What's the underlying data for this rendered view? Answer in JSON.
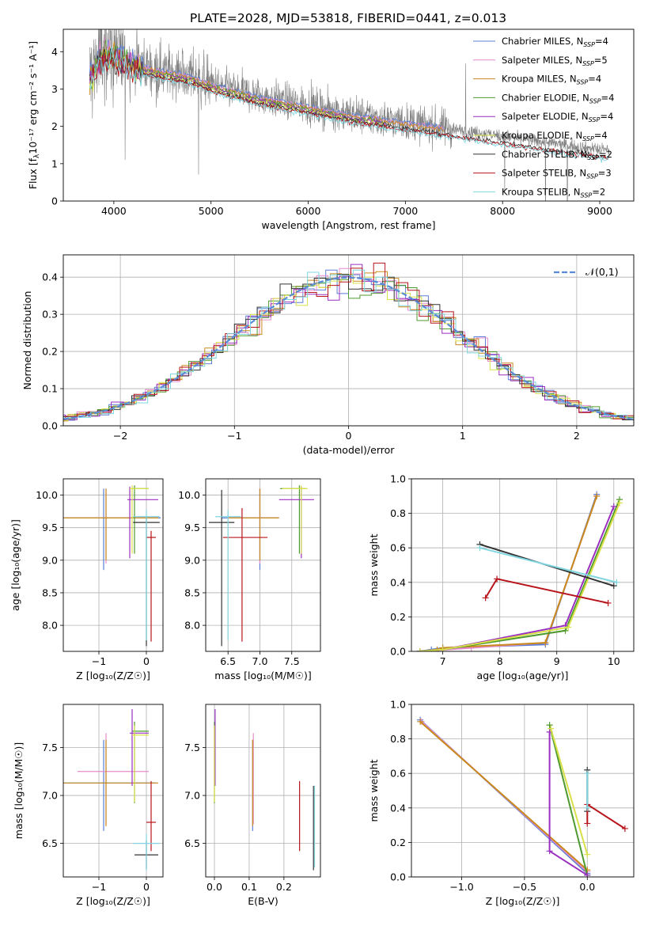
{
  "figure": {
    "title": "PLATE=2028, MJD=53818, FIBERID=0441, z=0.013"
  },
  "models": [
    {
      "name": "Chabrier MILES",
      "nssp": "4",
      "color": "#5b7fd6"
    },
    {
      "name": "Salpeter MILES",
      "nssp": "5",
      "color": "#e68ccd"
    },
    {
      "name": "Kroupa MILES",
      "nssp": "4",
      "color": "#c98a1c"
    },
    {
      "name": "Chabrier ELODIE",
      "nssp": "4",
      "color": "#4f9a2e"
    },
    {
      "name": "Salpeter ELODIE",
      "nssp": "4",
      "color": "#9b30c0"
    },
    {
      "name": "Kroupa ELODIE",
      "nssp": "4",
      "color": "#d8e04a"
    },
    {
      "name": "Chabrier STELIB",
      "nssp": "2",
      "color": "#333333"
    },
    {
      "name": "Salpeter STELIB",
      "nssp": "3",
      "color": "#b8141b"
    },
    {
      "name": "Kroupa STELIB",
      "nssp": "2",
      "color": "#7fd6e0"
    }
  ],
  "chart_data": [
    {
      "id": "spectrum",
      "type": "line",
      "xlabel": "wavelength [Angstrom, rest frame]",
      "ylabel_main": "Flux [f",
      "ylabel_sub": "λ",
      "ylabel_rest": "10⁻¹⁷ erg cm⁻² s⁻¹ A⁻¹]",
      "xlim": [
        3480,
        9350
      ],
      "ylim": [
        0,
        4.6
      ],
      "xticks": [
        4000,
        5000,
        6000,
        7000,
        8000,
        9000
      ],
      "yticks": [
        0,
        1,
        2,
        3,
        4
      ],
      "data_color": "#808080",
      "continuum": [
        [
          3750,
          3.3
        ],
        [
          3850,
          3.9
        ],
        [
          3950,
          4.05
        ],
        [
          4050,
          3.95
        ],
        [
          4200,
          3.7
        ],
        [
          4400,
          3.55
        ],
        [
          4600,
          3.45
        ],
        [
          4800,
          3.35
        ],
        [
          5000,
          3.15
        ],
        [
          5200,
          3.0
        ],
        [
          5500,
          2.8
        ],
        [
          5800,
          2.65
        ],
        [
          6100,
          2.5
        ],
        [
          6500,
          2.3
        ],
        [
          6900,
          2.15
        ],
        [
          7300,
          2.0
        ],
        [
          7700,
          1.85
        ],
        [
          8100,
          1.7
        ],
        [
          8500,
          1.55
        ],
        [
          8800,
          1.45
        ],
        [
          9100,
          1.35
        ]
      ],
      "model_ranges": [
        [
          3750,
          7400
        ],
        [
          3750,
          7400
        ],
        [
          3750,
          7400
        ],
        [
          3750,
          6800
        ],
        [
          3750,
          6800
        ],
        [
          3750,
          6800
        ],
        [
          3750,
          9100
        ],
        [
          3750,
          9100
        ],
        [
          3750,
          9100
        ]
      ],
      "legend_position": "upper right"
    },
    {
      "id": "residual-histogram",
      "type": "line",
      "xlabel": "(data-model)/error",
      "ylabel": "Normed distribution",
      "xlim": [
        -2.5,
        2.5
      ],
      "ylim": [
        0,
        0.46
      ],
      "xticks": [
        -2,
        -1,
        0,
        1,
        2
      ],
      "yticks": [
        0.0,
        0.1,
        0.2,
        0.3,
        0.4
      ],
      "grid": true,
      "bin_width": 0.1,
      "reference_label": "𝒩(0,1)",
      "reference_color": "#5b8bd6",
      "legend_position": "upper right"
    },
    {
      "id": "age-vs-Z",
      "type": "scatter",
      "xlabel": "Z [log₁₀(Z/Z☉)]",
      "ylabel": "age  [log₁₀(age/yr)]",
      "xlim": [
        -1.75,
        0.35
      ],
      "ylim": [
        7.6,
        10.25
      ],
      "xticks": [
        -1,
        0
      ],
      "yticks": [
        8.0,
        8.5,
        9.0,
        9.5,
        10.0
      ],
      "grid": true,
      "errorbars": [
        {
          "model": 0,
          "x": -0.9,
          "y": 9.65,
          "xerr": [
            0.9,
            1.2
          ],
          "yerr": [
            0.8,
            0.45
          ]
        },
        {
          "model": 1,
          "x": -0.85,
          "y": 9.65,
          "xerr": [
            0.9,
            1.1
          ],
          "yerr": [
            0.7,
            0.45
          ]
        },
        {
          "model": 2,
          "x": -0.85,
          "y": 9.65,
          "xerr": [
            0.9,
            1.1
          ],
          "yerr": [
            0.65,
            0.45
          ]
        },
        {
          "model": 3,
          "x": -0.25,
          "y": 10.1,
          "xerr": [
            0.05,
            0.3
          ],
          "yerr": [
            1.0,
            0.05
          ]
        },
        {
          "model": 4,
          "x": -0.35,
          "y": 9.93,
          "xerr": [
            0.05,
            0.6
          ],
          "yerr": [
            0.9,
            0.2
          ]
        },
        {
          "model": 5,
          "x": -0.3,
          "y": 10.1,
          "xerr": [
            0.05,
            0.35
          ],
          "yerr": [
            1.0,
            0.05
          ]
        },
        {
          "model": 6,
          "x": 0.0,
          "y": 9.58,
          "xerr": [
            0.28,
            0.28
          ],
          "yerr": [
            1.9,
            0.1
          ]
        },
        {
          "model": 7,
          "x": 0.1,
          "y": 9.35,
          "xerr": [
            0.1,
            0.1
          ],
          "yerr": [
            1.6,
            0.1
          ]
        },
        {
          "model": 8,
          "x": 0.0,
          "y": 9.67,
          "xerr": [
            0.28,
            0.28
          ],
          "yerr": [
            1.9,
            0.1
          ]
        }
      ]
    },
    {
      "id": "age-vs-mass",
      "type": "scatter",
      "xlabel": "mass [log₁₀(M/M☉)]",
      "ylabel": "",
      "xlim": [
        6.15,
        7.95
      ],
      "ylim": [
        7.6,
        10.25
      ],
      "xticks": [
        6.5,
        7.0,
        7.5
      ],
      "yticks": [
        8.0,
        8.5,
        9.0,
        9.5,
        10.0
      ],
      "grid": true,
      "errorbars": [
        {
          "model": 0,
          "x": 7.0,
          "y": 9.65,
          "xerr": [
            0.6,
            0.3
          ],
          "yerr": [
            0.8,
            0.45
          ]
        },
        {
          "model": 1,
          "x": 7.0,
          "y": 9.65,
          "xerr": [
            0.5,
            0.3
          ],
          "yerr": [
            0.7,
            0.45
          ]
        },
        {
          "model": 2,
          "x": 7.0,
          "y": 9.65,
          "xerr": [
            0.5,
            0.3
          ],
          "yerr": [
            0.65,
            0.45
          ]
        },
        {
          "model": 3,
          "x": 7.62,
          "y": 10.1,
          "xerr": [
            0.3,
            0.1
          ],
          "yerr": [
            1.0,
            0.05
          ]
        },
        {
          "model": 4,
          "x": 7.65,
          "y": 9.93,
          "xerr": [
            0.35,
            0.2
          ],
          "yerr": [
            0.9,
            0.2
          ]
        },
        {
          "model": 5,
          "x": 7.65,
          "y": 10.1,
          "xerr": [
            0.3,
            0.1
          ],
          "yerr": [
            1.0,
            0.05
          ]
        },
        {
          "model": 6,
          "x": 6.4,
          "y": 9.58,
          "xerr": [
            0.2,
            0.2
          ],
          "yerr": [
            1.9,
            0.5
          ]
        },
        {
          "model": 7,
          "x": 6.72,
          "y": 9.35,
          "xerr": [
            0.3,
            0.4
          ],
          "yerr": [
            1.6,
            0.45
          ]
        },
        {
          "model": 8,
          "x": 6.5,
          "y": 9.67,
          "xerr": [
            0.2,
            0.2
          ],
          "yerr": [
            1.9,
            0.1
          ]
        }
      ]
    },
    {
      "id": "mass-weight-vs-age",
      "type": "line",
      "xlabel": "age  [log₁₀(age/yr)]",
      "ylabel": "mass weight",
      "xlim": [
        6.45,
        10.35
      ],
      "ylim": [
        0,
        1.0
      ],
      "xticks": [
        7,
        8,
        9,
        10
      ],
      "yticks": [
        0.0,
        0.2,
        0.4,
        0.6,
        0.8,
        1.0
      ],
      "grid": true,
      "series": [
        {
          "model": 0,
          "points": [
            [
              6.6,
              0.0
            ],
            [
              6.8,
              0.01
            ],
            [
              7.0,
              0.02
            ],
            [
              8.8,
              0.04
            ],
            [
              9.7,
              0.91
            ]
          ]
        },
        {
          "model": 1,
          "points": [
            [
              6.6,
              0.0
            ],
            [
              7.5,
              0.02
            ],
            [
              8.8,
              0.05
            ],
            [
              9.7,
              0.9
            ]
          ]
        },
        {
          "model": 2,
          "points": [
            [
              6.6,
              0.0
            ],
            [
              6.9,
              0.01
            ],
            [
              7.0,
              0.02
            ],
            [
              8.8,
              0.05
            ],
            [
              9.7,
              0.9
            ]
          ]
        },
        {
          "model": 3,
          "points": [
            [
              6.6,
              0.0
            ],
            [
              7.0,
              0.01
            ],
            [
              9.15,
              0.12
            ],
            [
              10.1,
              0.88
            ]
          ]
        },
        {
          "model": 4,
          "points": [
            [
              6.6,
              0.0
            ],
            [
              7.0,
              0.01
            ],
            [
              9.15,
              0.15
            ],
            [
              10.0,
              0.84
            ]
          ]
        },
        {
          "model": 5,
          "points": [
            [
              6.6,
              0.0
            ],
            [
              7.0,
              0.01
            ],
            [
              9.2,
              0.14
            ],
            [
              10.1,
              0.86
            ]
          ]
        },
        {
          "model": 6,
          "points": [
            [
              7.65,
              0.62
            ],
            [
              10.0,
              0.38
            ]
          ]
        },
        {
          "model": 7,
          "points": [
            [
              7.75,
              0.31
            ],
            [
              7.95,
              0.42
            ],
            [
              9.9,
              0.28
            ]
          ]
        },
        {
          "model": 8,
          "points": [
            [
              7.65,
              0.6
            ],
            [
              10.05,
              0.4
            ]
          ]
        }
      ]
    },
    {
      "id": "mass-vs-Z",
      "type": "scatter",
      "xlabel": "Z [log₁₀(Z/Z☉)]",
      "ylabel": "mass [log₁₀(M/M☉)]",
      "xlim": [
        -1.75,
        0.35
      ],
      "ylim": [
        6.15,
        7.95
      ],
      "xticks": [
        -1,
        0
      ],
      "yticks": [
        6.5,
        7.0,
        7.5
      ],
      "grid": true,
      "errorbars": [
        {
          "model": 0,
          "x": -0.9,
          "y": 7.13,
          "xerr": [
            0.9,
            1.1
          ],
          "yerr": [
            0.5,
            0.45
          ]
        },
        {
          "model": 1,
          "x": -0.85,
          "y": 7.25,
          "xerr": [
            0.6,
            0.9
          ],
          "yerr": [
            0.55,
            0.4
          ]
        },
        {
          "model": 2,
          "x": -0.85,
          "y": 7.13,
          "xerr": [
            0.9,
            1.1
          ],
          "yerr": [
            0.45,
            0.45
          ]
        },
        {
          "model": 3,
          "x": -0.25,
          "y": 7.67,
          "xerr": [
            0.05,
            0.3
          ],
          "yerr": [
            0.75,
            0.1
          ]
        },
        {
          "model": 4,
          "x": -0.3,
          "y": 7.65,
          "xerr": [
            0.05,
            0.35
          ],
          "yerr": [
            0.55,
            0.25
          ]
        },
        {
          "model": 5,
          "x": -0.25,
          "y": 7.63,
          "xerr": [
            0.05,
            0.3
          ],
          "yerr": [
            0.7,
            0.1
          ]
        },
        {
          "model": 6,
          "x": 0.0,
          "y": 6.38,
          "xerr": [
            0.25,
            0.25
          ],
          "yerr": [
            0.15,
            0.15
          ]
        },
        {
          "model": 7,
          "x": 0.1,
          "y": 6.72,
          "xerr": [
            0.1,
            0.1
          ],
          "yerr": [
            0.3,
            0.43
          ]
        },
        {
          "model": 8,
          "x": 0.0,
          "y": 6.5,
          "xerr": [
            0.28,
            0.28
          ],
          "yerr": [
            0.28,
            0.1
          ]
        }
      ]
    },
    {
      "id": "mass-vs-EBV",
      "type": "scatter",
      "xlabel": "E(B-V)",
      "ylabel": "",
      "xlim": [
        -0.025,
        0.305
      ],
      "ylim": [
        6.15,
        7.95
      ],
      "xticks": [
        0.0,
        0.1,
        0.2
      ],
      "yticks": [
        6.5,
        7.0,
        7.5
      ],
      "grid": true,
      "errorbars": [
        {
          "model": 0,
          "x": 0.11,
          "y": 7.13,
          "xerr": [
            0,
            0
          ],
          "yerr": [
            0.5,
            0.45
          ]
        },
        {
          "model": 1,
          "x": 0.112,
          "y": 7.25,
          "xerr": [
            0,
            0
          ],
          "yerr": [
            0.55,
            0.4
          ]
        },
        {
          "model": 2,
          "x": 0.11,
          "y": 7.13,
          "xerr": [
            0,
            0
          ],
          "yerr": [
            0.45,
            0.45
          ]
        },
        {
          "model": 3,
          "x": 0.0,
          "y": 7.67,
          "xerr": [
            0,
            0
          ],
          "yerr": [
            0.75,
            0.1
          ]
        },
        {
          "model": 4,
          "x": 0.002,
          "y": 7.65,
          "xerr": [
            0,
            0
          ],
          "yerr": [
            0.55,
            0.25
          ]
        },
        {
          "model": 5,
          "x": 0.0,
          "y": 7.63,
          "xerr": [
            0,
            0
          ],
          "yerr": [
            0.7,
            0.1
          ]
        },
        {
          "model": 6,
          "x": 0.285,
          "y": 6.6,
          "xerr": [
            0,
            0
          ],
          "yerr": [
            0.38,
            0.5
          ]
        },
        {
          "model": 7,
          "x": 0.245,
          "y": 6.72,
          "xerr": [
            0,
            0
          ],
          "yerr": [
            0.3,
            0.43
          ]
        },
        {
          "model": 8,
          "x": 0.288,
          "y": 6.65,
          "xerr": [
            0,
            0
          ],
          "yerr": [
            0.4,
            0.45
          ]
        }
      ]
    },
    {
      "id": "mass-weight-vs-Z",
      "type": "line",
      "xlabel": "Z [log₁₀(Z/Z☉)]",
      "ylabel": "mass weight",
      "xlim": [
        -1.4,
        0.37
      ],
      "ylim": [
        0,
        1.0
      ],
      "xticks": [
        -1.0,
        -0.5,
        0.0
      ],
      "yticks": [
        0.0,
        0.2,
        0.4,
        0.6,
        0.8,
        1.0
      ],
      "grid": true,
      "series": [
        {
          "model": 0,
          "points": [
            [
              -1.33,
              0.91
            ],
            [
              0.0,
              0.02
            ]
          ]
        },
        {
          "model": 1,
          "points": [
            [
              -1.32,
              0.9
            ],
            [
              0.0,
              0.03
            ]
          ]
        },
        {
          "model": 2,
          "points": [
            [
              -1.33,
              0.9
            ],
            [
              0.0,
              0.04
            ]
          ]
        },
        {
          "model": 3,
          "points": [
            [
              -0.3,
              0.88
            ],
            [
              0.0,
              0.01
            ]
          ]
        },
        {
          "model": 4,
          "points": [
            [
              -0.3,
              0.84
            ],
            [
              -0.3,
              0.15
            ],
            [
              0.0,
              0.01
            ]
          ]
        },
        {
          "model": 5,
          "points": [
            [
              -0.29,
              0.86
            ],
            [
              0.0,
              0.13
            ]
          ]
        },
        {
          "model": 6,
          "points": [
            [
              0.0,
              0.62
            ],
            [
              0.0,
              0.38
            ]
          ]
        },
        {
          "model": 7,
          "points": [
            [
              0.0,
              0.31
            ],
            [
              0.0,
              0.42
            ],
            [
              0.3,
              0.28
            ]
          ]
        },
        {
          "model": 8,
          "points": [
            [
              0.0,
              0.6
            ],
            [
              0.0,
              0.4
            ]
          ]
        }
      ]
    }
  ]
}
